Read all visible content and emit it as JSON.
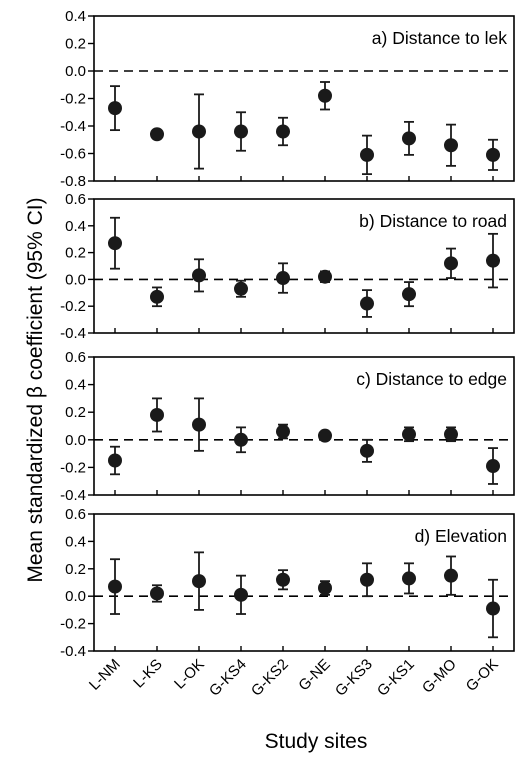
{
  "figure": {
    "ylabel": "Mean standardized β coefficient (95% CI)",
    "xlabel": "Study sites",
    "colors": {
      "marker": "#1a1a1a",
      "axis": "#000000",
      "reference_line": "#000000"
    }
  },
  "chart_data": [
    {
      "type": "scatter",
      "title": "a) Distance to lek",
      "categories": [
        "L-NM",
        "L-KS",
        "L-OK",
        "G-KS4",
        "G-KS2",
        "G-NE",
        "G-KS3",
        "G-KS1",
        "G-MO",
        "G-OK"
      ],
      "values": [
        -0.27,
        -0.46,
        -0.44,
        -0.44,
        -0.44,
        -0.18,
        -0.61,
        -0.49,
        -0.54,
        -0.61
      ],
      "ci_low": [
        -0.43,
        null,
        -0.71,
        -0.58,
        -0.54,
        -0.28,
        -0.75,
        -0.61,
        -0.69,
        -0.72
      ],
      "ci_high": [
        -0.11,
        null,
        -0.17,
        -0.3,
        -0.34,
        -0.08,
        -0.47,
        -0.37,
        -0.39,
        -0.5
      ],
      "ylim": [
        -0.8,
        0.4
      ],
      "yticks": [
        "0.4",
        "0.2",
        "0.0",
        "-0.2",
        "-0.4",
        "-0.6",
        "-0.8"
      ],
      "reference_line": 0,
      "grid": false
    },
    {
      "type": "scatter",
      "title": "b) Distance to road",
      "categories": [
        "L-NM",
        "L-KS",
        "L-OK",
        "G-KS4",
        "G-KS2",
        "G-NE",
        "G-KS3",
        "G-KS1",
        "G-MO",
        "G-OK"
      ],
      "values": [
        0.27,
        -0.13,
        0.03,
        -0.07,
        0.01,
        0.02,
        -0.18,
        -0.11,
        0.12,
        0.14
      ],
      "ci_low": [
        0.08,
        -0.2,
        -0.09,
        -0.13,
        -0.1,
        -0.02,
        -0.28,
        -0.2,
        0.01,
        -0.06
      ],
      "ci_high": [
        0.46,
        -0.06,
        0.15,
        -0.01,
        0.12,
        0.06,
        -0.08,
        -0.02,
        0.23,
        0.34
      ],
      "ylim": [
        -0.4,
        0.6
      ],
      "yticks": [
        "0.6",
        "0.4",
        "0.2",
        "0.0",
        "-0.2",
        "-0.4"
      ],
      "reference_line": 0,
      "grid": false
    },
    {
      "type": "scatter",
      "title": "c) Distance to edge",
      "categories": [
        "L-NM",
        "L-KS",
        "L-OK",
        "G-KS4",
        "G-KS2",
        "G-NE",
        "G-KS3",
        "G-KS1",
        "G-MO",
        "G-OK"
      ],
      "values": [
        -0.15,
        0.18,
        0.11,
        0.0,
        0.06,
        0.03,
        -0.08,
        0.04,
        0.04,
        -0.19
      ],
      "ci_low": [
        -0.25,
        0.06,
        -0.08,
        -0.09,
        0.01,
        null,
        -0.16,
        -0.01,
        -0.01,
        -0.32
      ],
      "ci_high": [
        -0.05,
        0.3,
        0.3,
        0.09,
        0.11,
        null,
        0.0,
        0.09,
        0.09,
        -0.06
      ],
      "ylim": [
        -0.4,
        0.6
      ],
      "yticks": [
        "0.6",
        "0.4",
        "0.2",
        "0.0",
        "-0.2",
        "-0.4"
      ],
      "reference_line": 0,
      "grid": false
    },
    {
      "type": "scatter",
      "title": "d) Elevation",
      "categories": [
        "L-NM",
        "L-KS",
        "L-OK",
        "G-KS4",
        "G-KS2",
        "G-NE",
        "G-KS3",
        "G-KS1",
        "G-MO",
        "G-OK"
      ],
      "values": [
        0.07,
        0.02,
        0.11,
        0.01,
        0.12,
        0.06,
        0.12,
        0.13,
        0.15,
        -0.09
      ],
      "ci_low": [
        -0.13,
        -0.04,
        -0.1,
        -0.13,
        0.05,
        0.01,
        0.0,
        0.02,
        0.01,
        -0.3
      ],
      "ci_high": [
        0.27,
        0.08,
        0.32,
        0.15,
        0.19,
        0.11,
        0.24,
        0.24,
        0.29,
        0.12
      ],
      "ylim": [
        -0.4,
        0.6
      ],
      "yticks": [
        "0.6",
        "0.4",
        "0.2",
        "0.0",
        "-0.2",
        "-0.4"
      ],
      "reference_line": 0,
      "grid": false
    }
  ]
}
